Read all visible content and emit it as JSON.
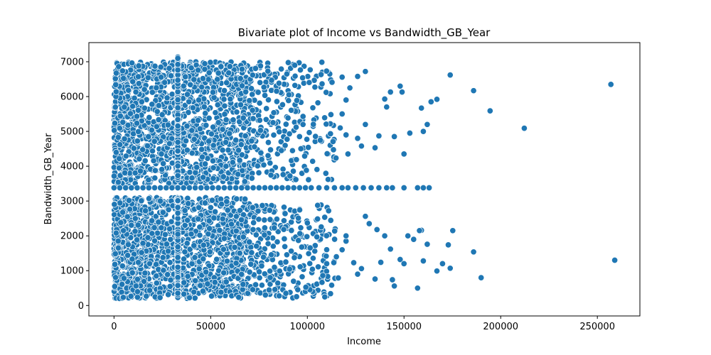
{
  "chart_data": {
    "type": "scatter",
    "title": "Bivariate plot of Income vs Bandwidth_GB_Year",
    "xlabel": "Income",
    "ylabel": "Bandwidth_GB_Year",
    "xlim": [
      -13000,
      272000
    ],
    "ylim": [
      -300,
      7550
    ],
    "xticks": [
      0,
      50000,
      100000,
      150000,
      200000,
      250000
    ],
    "yticks": [
      0,
      1000,
      2000,
      3000,
      4000,
      5000,
      6000,
      7000
    ],
    "xtick_labels": [
      "0",
      "50000",
      "100000",
      "150000",
      "200000",
      "250000"
    ],
    "ytick_labels": [
      "0",
      "1000",
      "2000",
      "3000",
      "4000",
      "5000",
      "6000",
      "7000"
    ],
    "grid": false,
    "legend": "none",
    "marker_color": "#1f77b4",
    "marker_edge_color": "#ffffff",
    "series": [
      {
        "points": [
          [
            173900,
            6620
          ],
          [
            186000,
            6170
          ],
          [
            194500,
            5590
          ],
          [
            212200,
            5090
          ],
          [
            257000,
            6350
          ],
          [
            259000,
            1300
          ],
          [
            189900,
            800
          ],
          [
            186000,
            1540
          ],
          [
            175200,
            2150
          ],
          [
            172900,
            1740
          ],
          [
            173900,
            1070
          ],
          [
            167000,
            990
          ],
          [
            169900,
            1200
          ],
          [
            162000,
            1760
          ],
          [
            160000,
            1280
          ],
          [
            157000,
            500
          ],
          [
            145000,
            560
          ],
          [
            159000,
            2160
          ],
          [
            167000,
            5920
          ],
          [
            164000,
            5850
          ],
          [
            159000,
            5670
          ],
          [
            160000,
            5000
          ],
          [
            162000,
            5200
          ],
          [
            150000,
            4350
          ],
          [
            153000,
            4950
          ],
          [
            143000,
            6130
          ],
          [
            149000,
            6130
          ],
          [
            148000,
            6300
          ],
          [
            140000,
            5930
          ],
          [
            141000,
            5700
          ],
          [
            137000,
            4870
          ],
          [
            135000,
            4530
          ],
          [
            145000,
            4850
          ],
          [
            130000,
            6720
          ],
          [
            126000,
            6580
          ],
          [
            122000,
            6250
          ],
          [
            118000,
            6560
          ],
          [
            120000,
            5900
          ],
          [
            118000,
            5500
          ],
          [
            120000,
            4900
          ],
          [
            121000,
            4350
          ],
          [
            117000,
            5100
          ],
          [
            130000,
            5200
          ],
          [
            126000,
            4800
          ],
          [
            128000,
            4580
          ],
          [
            130000,
            2560
          ],
          [
            132000,
            2350
          ],
          [
            136000,
            2180
          ],
          [
            140000,
            2000
          ],
          [
            143000,
            1620
          ],
          [
            148000,
            1320
          ],
          [
            150000,
            1200
          ],
          [
            155000,
            1900
          ],
          [
            138000,
            1240
          ],
          [
            128000,
            1060
          ],
          [
            126000,
            900
          ],
          [
            124000,
            1230
          ],
          [
            120000,
            1850
          ],
          [
            118000,
            1600
          ],
          [
            115000,
            1400
          ],
          [
            111000,
            2720
          ],
          [
            112000,
            340
          ],
          [
            108000,
            860
          ],
          [
            110000,
            1200
          ],
          [
            116000,
            790
          ],
          [
            120000,
            2000
          ],
          [
            135000,
            760
          ],
          [
            144000,
            740
          ],
          [
            152000,
            2000
          ],
          [
            158000,
            2150
          ]
        ],
        "horizontal_band": {
          "y": 3380,
          "x": [
            0,
            3000,
            6000,
            9000,
            12000,
            15000,
            18000,
            21000,
            24000,
            27000,
            30000,
            33000,
            36000,
            39000,
            42000,
            45000,
            48000,
            51000,
            54000,
            57000,
            60000,
            63000,
            66000,
            69000,
            72000,
            75000,
            78000,
            81000,
            84000,
            87000,
            90000,
            93000,
            96000,
            99000,
            102000,
            106000,
            110000,
            114000,
            118000,
            121000,
            125000,
            129000,
            133000,
            137000,
            141000,
            144000,
            150000,
            157000,
            160000,
            163000
          ]
        },
        "vertical_band": {
          "x": 33000,
          "y_upper_range": [
            3600,
            7150
          ],
          "y_lower_range": [
            200,
            3100
          ]
        },
        "dense_clusters": [
          {
            "x_range": [
              0,
              70000
            ],
            "y_range": [
              3500,
              7000
            ],
            "count": 1400
          },
          {
            "x_range": [
              70000,
              115000
            ],
            "y_range": [
              3600,
              7000
            ],
            "count": 260
          },
          {
            "x_range": [
              0,
              70000
            ],
            "y_range": [
              200,
              3100
            ],
            "count": 1400
          },
          {
            "x_range": [
              70000,
              115000
            ],
            "y_range": [
              200,
              2900
            ],
            "count": 260
          }
        ]
      }
    ]
  }
}
